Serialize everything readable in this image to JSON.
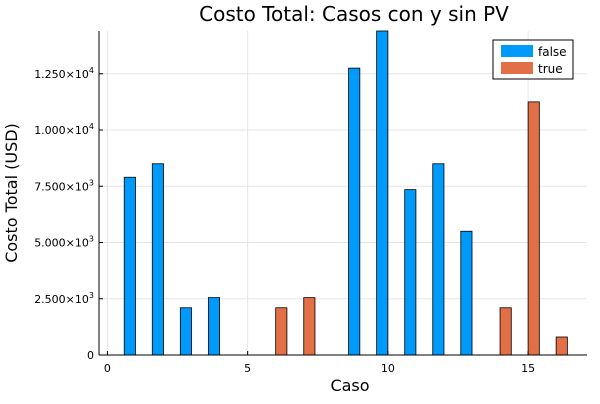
{
  "chart_data": {
    "type": "bar",
    "title": "Costo Total: Casos con y sin PV",
    "xlabel": "Caso",
    "ylabel": "Costo Total (USD)",
    "xlim": [
      -0.3,
      17.1
    ],
    "ylim": [
      0,
      14400
    ],
    "grid": true,
    "legend_position": "top-right",
    "x_ticks": [
      {
        "value": 0,
        "label": "0"
      },
      {
        "value": 5,
        "label": "5"
      },
      {
        "value": 10,
        "label": "10"
      },
      {
        "value": 15,
        "label": "15"
      }
    ],
    "y_ticks": [
      {
        "value": 0,
        "label": "0"
      },
      {
        "value": 2500,
        "label": "2.500×10",
        "exp": "3"
      },
      {
        "value": 5000,
        "label": "5.000×10",
        "exp": "3"
      },
      {
        "value": 7500,
        "label": "7.500×10",
        "exp": "3"
      },
      {
        "value": 10000,
        "label": "1.000×10",
        "exp": "4"
      },
      {
        "value": 12500,
        "label": "1.250×10",
        "exp": "4"
      }
    ],
    "bar_width": 0.4,
    "series": [
      {
        "name": "false",
        "color": "#009AFA",
        "points": [
          {
            "x": 0.8,
            "y": 7900
          },
          {
            "x": 1.8,
            "y": 8500
          },
          {
            "x": 2.8,
            "y": 2100
          },
          {
            "x": 3.8,
            "y": 2550
          },
          {
            "x": 4.8,
            "y": 0
          },
          {
            "x": 5.8,
            "y": 0
          },
          {
            "x": 6.8,
            "y": 0
          },
          {
            "x": 7.8,
            "y": 0
          },
          {
            "x": 8.8,
            "y": 12750
          },
          {
            "x": 9.8,
            "y": 14400
          },
          {
            "x": 10.8,
            "y": 7350
          },
          {
            "x": 11.8,
            "y": 8500
          },
          {
            "x": 12.8,
            "y": 5500
          },
          {
            "x": 13.8,
            "y": 0
          },
          {
            "x": 14.8,
            "y": 0
          },
          {
            "x": 15.8,
            "y": 0
          }
        ]
      },
      {
        "name": "true",
        "color": "#E26F46",
        "points": [
          {
            "x": 1.2,
            "y": 0
          },
          {
            "x": 2.2,
            "y": 0
          },
          {
            "x": 3.2,
            "y": 0
          },
          {
            "x": 4.2,
            "y": 0
          },
          {
            "x": 5.2,
            "y": 0
          },
          {
            "x": 6.2,
            "y": 2100
          },
          {
            "x": 7.2,
            "y": 2550
          },
          {
            "x": 8.2,
            "y": 0
          },
          {
            "x": 9.2,
            "y": 0
          },
          {
            "x": 10.2,
            "y": 0
          },
          {
            "x": 11.2,
            "y": 0
          },
          {
            "x": 12.2,
            "y": 0
          },
          {
            "x": 13.2,
            "y": 0
          },
          {
            "x": 14.2,
            "y": 2100
          },
          {
            "x": 15.2,
            "y": 11250
          },
          {
            "x": 16.2,
            "y": 800
          }
        ]
      }
    ]
  }
}
